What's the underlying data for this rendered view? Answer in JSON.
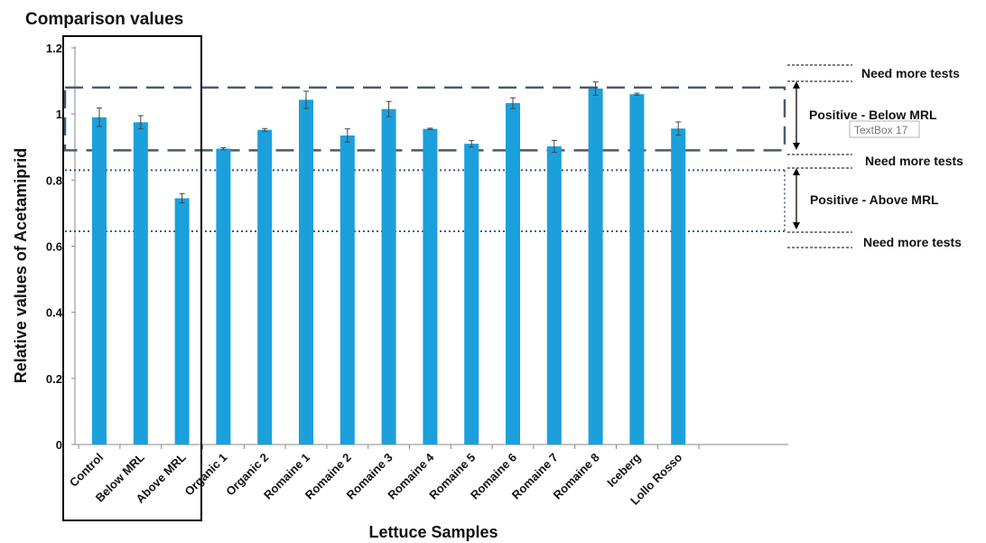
{
  "colors": {
    "bar": "#1ba0dc",
    "bar_dark": "#0f7fb5",
    "dash_line": "#4a5a6e",
    "dot_line": "#3b5a8a",
    "frame": "#000000"
  },
  "chart_data": {
    "type": "bar",
    "section_label": "Comparison values",
    "xlabel": "Lettuce Samples",
    "ylabel": "Relative values of Acetamiprid",
    "ylim": [
      0,
      1.2
    ],
    "yticks": [
      0,
      0.2,
      0.4,
      0.6,
      0.8,
      1,
      1.2
    ],
    "ytick_labels": [
      "0",
      "0.2",
      "0.4",
      "0.6",
      "0.8",
      "1",
      "1.2"
    ],
    "categories": [
      "Control",
      "Below MRL",
      "Above MRL",
      "Organic 1",
      "Organic 2",
      "Romaine 1",
      "Romaine 2",
      "Romaine 3",
      "Romaine 4",
      "Romaine 5",
      "Romaine 6",
      "Romaine 7",
      "Romaine 8",
      "Iceberg",
      "Lollo Rosso"
    ],
    "values": [
      0.99,
      0.975,
      0.745,
      0.895,
      0.952,
      1.043,
      0.935,
      1.015,
      0.955,
      0.91,
      1.033,
      0.902,
      1.077,
      1.06,
      0.956
    ],
    "errors": [
      0.028,
      0.02,
      0.014,
      0.003,
      0.004,
      0.026,
      0.02,
      0.023,
      0.002,
      0.01,
      0.016,
      0.018,
      0.02,
      0.003,
      0.02
    ],
    "grid": false,
    "reference_lines": {
      "below_mrl_band": [
        0.89,
        1.08
      ],
      "above_mrl_band": [
        0.645,
        0.83
      ]
    },
    "annotations": {
      "need_more_tests": "Need more tests",
      "positive_below": "Positive - Below MRL",
      "positive_above": "Positive - Above MRL",
      "textbox": "TextBox 17"
    }
  }
}
